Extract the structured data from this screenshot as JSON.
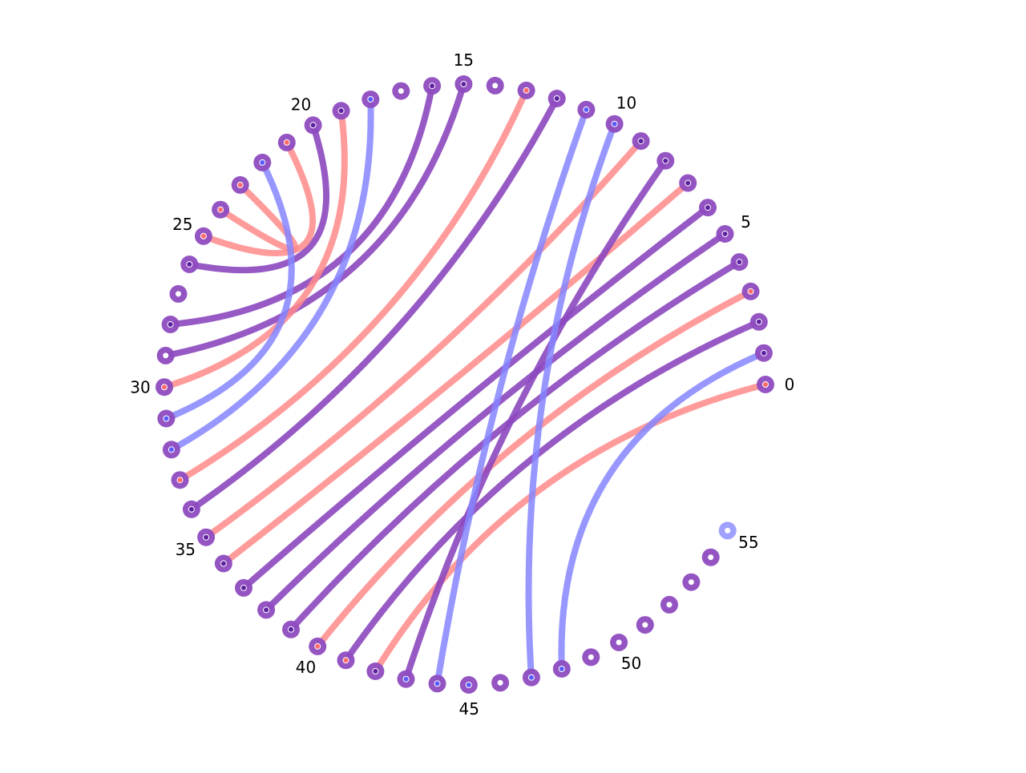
{
  "colors": {
    "red": "#ff8a8a",
    "blue": "#8585ff",
    "purple": "#8c48bf",
    "node_purple": "#8e4cc0",
    "node_blue": "#9b9bff",
    "center_red": "#ff6b6b",
    "center_blue": "#5a5aff",
    "center_purple": "#5e1fa0",
    "background": "#ffffff"
  },
  "nodes": {
    "count": 56,
    "tick_labels": [
      "0",
      "5",
      "10",
      "15",
      "20",
      "25",
      "30",
      "35",
      "40",
      "45",
      "50",
      "55"
    ]
  },
  "edges": [
    {
      "from": 0,
      "to": 42,
      "color": "red"
    },
    {
      "from": 1,
      "to": 48,
      "color": "blue"
    },
    {
      "from": 2,
      "to": 41,
      "color": "purple"
    },
    {
      "from": 3,
      "to": 40,
      "color": "red"
    },
    {
      "from": 4,
      "to": 39,
      "color": "purple"
    },
    {
      "from": 5,
      "to": 38,
      "color": "purple"
    },
    {
      "from": 6,
      "to": 37,
      "color": "purple"
    },
    {
      "from": 7,
      "to": 36,
      "color": "red"
    },
    {
      "from": 8,
      "to": 43,
      "color": "purple"
    },
    {
      "from": 9,
      "to": 35,
      "color": "red"
    },
    {
      "from": 10,
      "to": 47,
      "color": "blue"
    },
    {
      "from": 11,
      "to": 44,
      "color": "blue"
    },
    {
      "from": 12,
      "to": 34,
      "color": "purple"
    },
    {
      "from": 13,
      "to": 33,
      "color": "red"
    },
    {
      "from": 15,
      "to": 29,
      "color": "purple"
    },
    {
      "from": 16,
      "to": 28,
      "color": "purple"
    },
    {
      "from": 18,
      "to": 32,
      "color": "blue"
    },
    {
      "from": 19,
      "to": 30,
      "color": "red"
    },
    {
      "from": 20,
      "to": 26,
      "color": "purple"
    },
    {
      "from": 25,
      "to": 21,
      "color": "red"
    },
    {
      "from": 24,
      "to": 23,
      "color": "red"
    },
    {
      "from": 22,
      "to": 31,
      "color": "blue"
    }
  ],
  "node_styles": {
    "0": "red",
    "1": "purple",
    "2": "purple",
    "3": "red",
    "4": "purple",
    "5": "purple",
    "6": "purple",
    "7": "purple",
    "8": "purple",
    "9": "purple",
    "10": "blue",
    "11": "blue",
    "12": "purple",
    "13": "red",
    "14": "plain",
    "15": "purple",
    "16": "purple",
    "17": "plain",
    "18": "blue",
    "19": "purple",
    "20": "purple",
    "21": "red",
    "22": "blue",
    "23": "red",
    "24": "red",
    "25": "red",
    "26": "purple",
    "27": "plain",
    "28": "purple",
    "29": "plain",
    "30": "red",
    "31": "blue",
    "32": "blue",
    "33": "red",
    "34": "purple",
    "35": "purple",
    "36": "purple",
    "37": "purple",
    "38": "purple",
    "39": "purple",
    "40": "red",
    "41": "red",
    "42": "purple",
    "43": "blue",
    "44": "blue",
    "45": "blue",
    "46": "plain",
    "47": "blue",
    "48": "blue",
    "49": "plain",
    "50": "plain",
    "51": "plain",
    "52": "plain",
    "53": "plain",
    "54": "plain",
    "55": "light"
  }
}
